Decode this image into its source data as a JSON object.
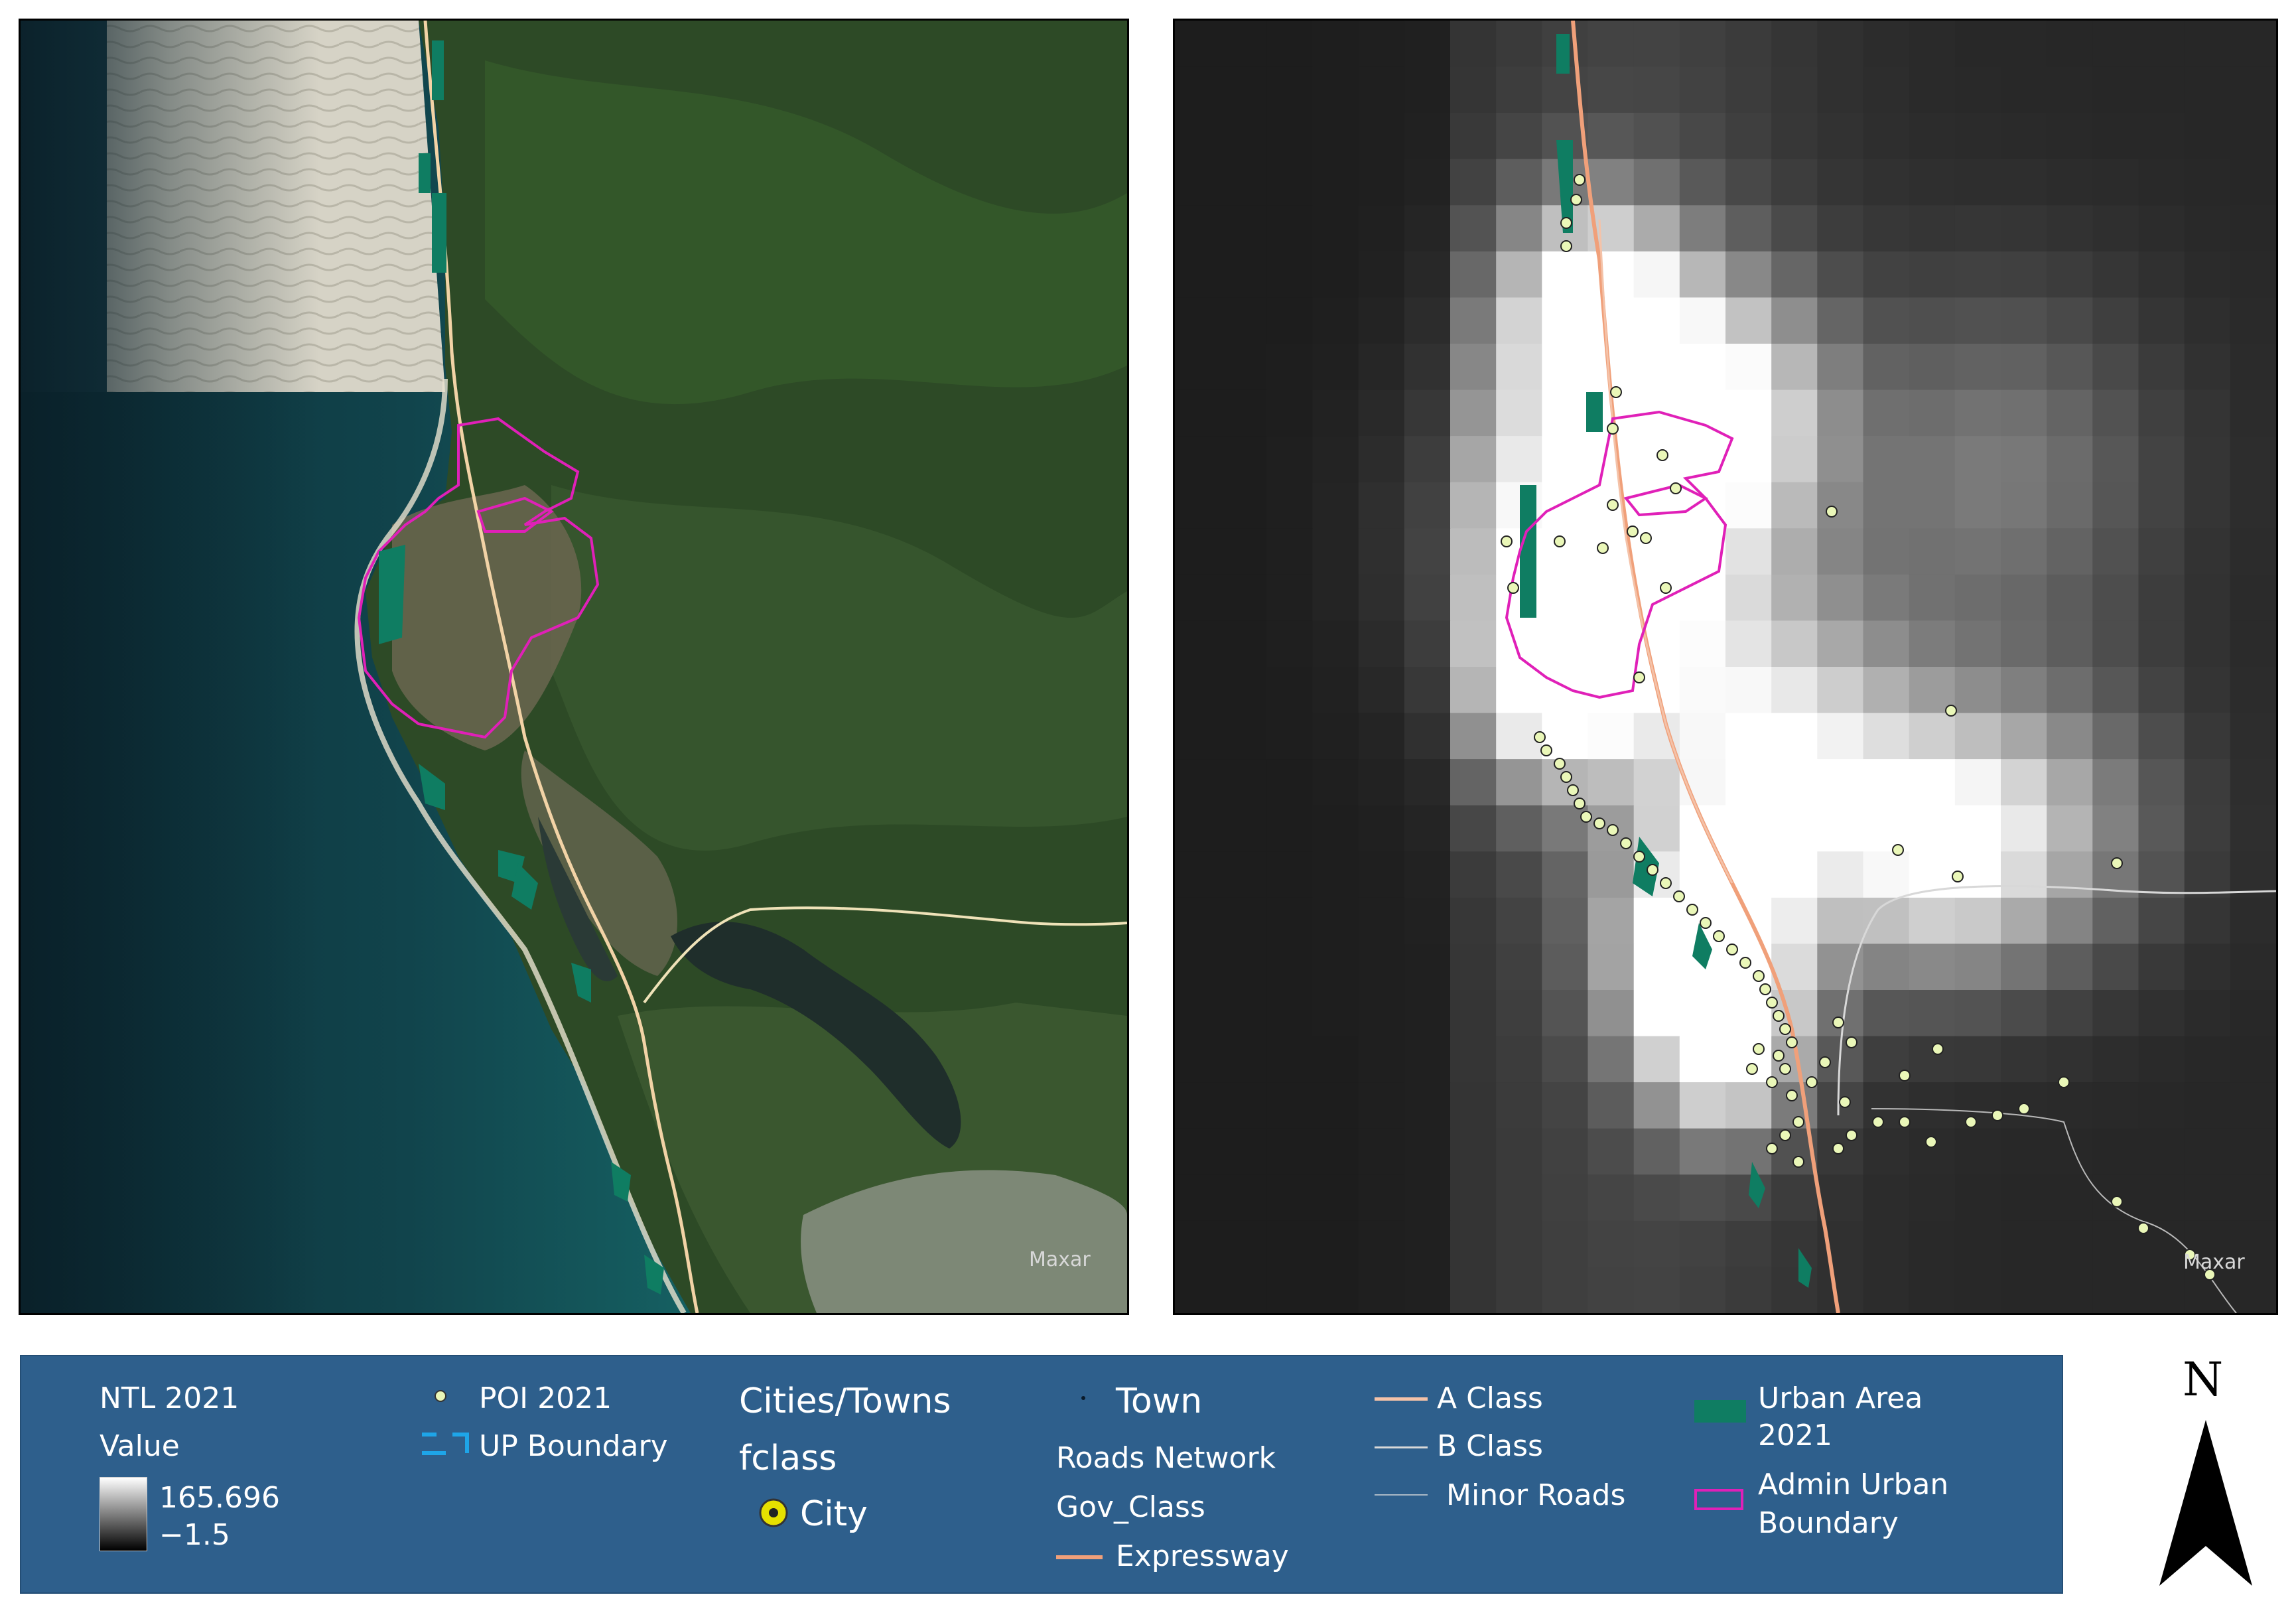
{
  "left_map": {
    "credit": "Maxar"
  },
  "right_map": {
    "credit": "Maxar"
  },
  "legend": {
    "ntl_title": "NTL 2021",
    "ntl_value_label": "Value",
    "ntl_max": "165.696",
    "ntl_min": "−1.5",
    "poi_label": "POI 2021",
    "up_boundary_label": "UP Boundary",
    "cities_title": "Cities/Towns",
    "cities_field": "fclass",
    "city_label": "City",
    "town_label": "Town",
    "roads_title": "Roads Network",
    "roads_field": "Gov_Class",
    "expressway_label": "Expressway",
    "a_class_label": "A Class",
    "b_class_label": "B Class",
    "minor_roads_label": "Minor Roads",
    "urban_area_label_1": "Urban Area",
    "urban_area_label_2": "2021",
    "admin_boundary_label_1": "Admin Urban",
    "admin_boundary_label_2": "Boundary"
  },
  "north": {
    "label": "N"
  },
  "colors": {
    "legend_bg": "#2e5f8c",
    "expressway": "#f0a07a",
    "a_class": "#f4c2a8",
    "b_class": "#d8d8d8",
    "urban_area": "#0f7d62",
    "admin_boundary": "#e020b8",
    "poi_fill": "#eaf7b8",
    "up_boundary": "#1ea5e8",
    "city_marker": "#e6e000"
  }
}
